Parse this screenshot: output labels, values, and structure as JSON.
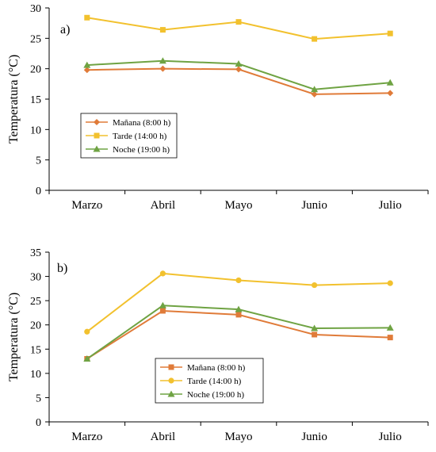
{
  "chart_data": [
    {
      "type": "line",
      "panel_label": "a)",
      "ylabel": "Temperatura (°C)",
      "xlabel": "",
      "ylim": [
        0,
        30
      ],
      "yticks": [
        0,
        5,
        10,
        15,
        20,
        25,
        30
      ],
      "categories": [
        "Marzo",
        "Abril",
        "Mayo",
        "Junio",
        "Julio"
      ],
      "legend_position": "lower-left",
      "series": [
        {
          "name": "Mañana (8:00 h)",
          "color": "#E07B39",
          "marker": "diamond",
          "values": [
            19.8,
            20.0,
            19.9,
            15.8,
            16.0
          ]
        },
        {
          "name": "Tarde (14:00 h)",
          "color": "#F2C12E",
          "marker": "square",
          "values": [
            28.4,
            26.4,
            27.7,
            24.9,
            25.8
          ]
        },
        {
          "name": "Noche (19:00 h)",
          "color": "#6FA343",
          "marker": "triangle",
          "values": [
            20.6,
            21.3,
            20.8,
            16.6,
            17.7
          ]
        }
      ]
    },
    {
      "type": "line",
      "panel_label": "b)",
      "ylabel": "Temperatura (°C)",
      "xlabel": "",
      "ylim": [
        0,
        35
      ],
      "yticks": [
        0,
        5,
        10,
        15,
        20,
        25,
        30,
        35
      ],
      "categories": [
        "Marzo",
        "Abril",
        "Mayo",
        "Junio",
        "Julio"
      ],
      "legend_position": "lower-center",
      "series": [
        {
          "name": "Mañana (8:00 h)",
          "color": "#E07B39",
          "marker": "square",
          "values": [
            13.0,
            22.9,
            22.1,
            18.0,
            17.4
          ]
        },
        {
          "name": "Tarde (14:00 h)",
          "color": "#F2C12E",
          "marker": "circle",
          "values": [
            18.6,
            30.6,
            29.2,
            28.2,
            28.6
          ]
        },
        {
          "name": "Noche (19:00 h)",
          "color": "#6FA343",
          "marker": "triangle",
          "values": [
            13.0,
            24.0,
            23.2,
            19.3,
            19.4
          ]
        }
      ]
    }
  ]
}
